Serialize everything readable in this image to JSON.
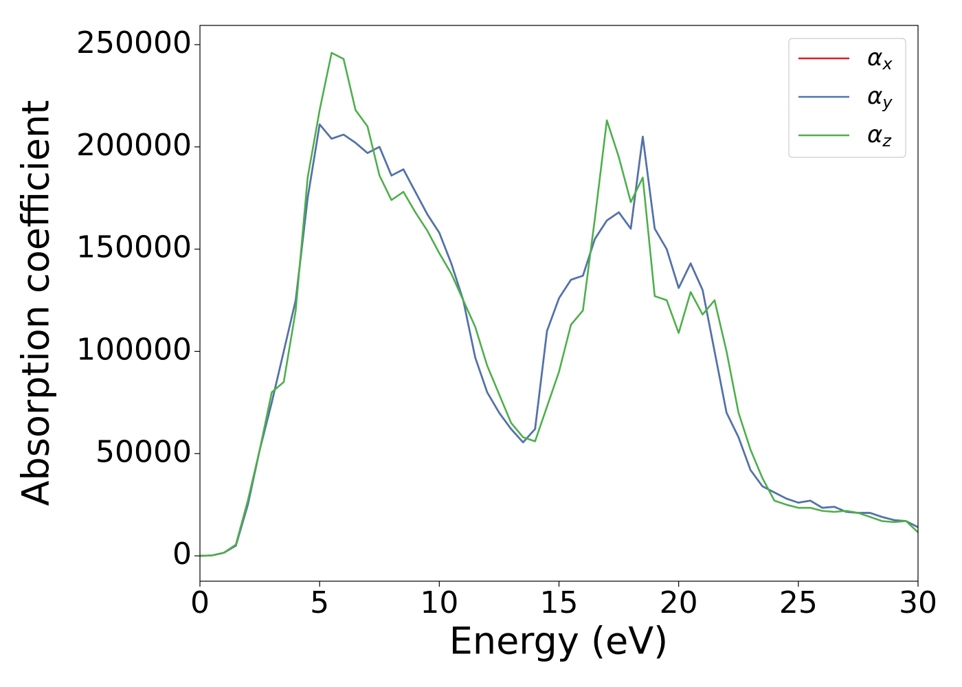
{
  "chart_data": {
    "type": "line",
    "xlabel": "Energy (eV)",
    "ylabel": "Absorption coefficient",
    "x": [
      0,
      0.5,
      1,
      1.5,
      2,
      2.5,
      3,
      3.5,
      4,
      4.5,
      5,
      5.5,
      6,
      6.5,
      7,
      7.5,
      8,
      8.5,
      9,
      9.5,
      10,
      10.5,
      11,
      11.5,
      12,
      12.5,
      13,
      13.5,
      14,
      14.5,
      15,
      15.5,
      16,
      16.5,
      17,
      17.5,
      18,
      18.5,
      19,
      19.5,
      20,
      20.5,
      21,
      21.5,
      22,
      22.5,
      23,
      23.5,
      24,
      24.5,
      25,
      25.5,
      26,
      26.5,
      27,
      27.5,
      28,
      28.5,
      29,
      29.5,
      30
    ],
    "series": [
      {
        "name": "αx",
        "color": "#e41a1c",
        "values": [
          0,
          200,
          1500,
          5000,
          25000,
          52000,
          75000,
          100000,
          125000,
          175000,
          211000,
          204000,
          206000,
          202000,
          197000,
          200000,
          186000,
          189000,
          178000,
          167000,
          158000,
          143000,
          125000,
          97000,
          80000,
          70000,
          62000,
          55500,
          62000,
          110000,
          126000,
          135000,
          137000,
          155000,
          164000,
          168000,
          160000,
          205000,
          160000,
          150000,
          131000,
          143000,
          130000,
          100000,
          70000,
          58000,
          42000,
          34000,
          31000,
          28000,
          26000,
          27000,
          23500,
          24000,
          21500,
          21000,
          21000,
          19000,
          17500,
          17000,
          14000
        ]
      },
      {
        "name": "αy",
        "color": "#4a76b0",
        "values": [
          0,
          200,
          1500,
          5000,
          25000,
          52000,
          75000,
          100000,
          125000,
          175000,
          211000,
          204000,
          206000,
          202000,
          197000,
          200000,
          186000,
          189000,
          178000,
          167000,
          158000,
          143000,
          125000,
          97000,
          80000,
          70000,
          62000,
          55500,
          62000,
          110000,
          126000,
          135000,
          137000,
          155000,
          164000,
          168000,
          160000,
          205000,
          160000,
          150000,
          131000,
          143000,
          130000,
          100000,
          70000,
          58000,
          42000,
          34000,
          31000,
          28000,
          26000,
          27000,
          23500,
          24000,
          21500,
          21000,
          21000,
          19000,
          17500,
          17000,
          14000
        ]
      },
      {
        "name": "αz",
        "color": "#4daf4a",
        "values": [
          0,
          200,
          1500,
          5500,
          27000,
          52000,
          80000,
          85000,
          120000,
          185000,
          218000,
          246000,
          243000,
          218000,
          210000,
          186000,
          174000,
          178000,
          168000,
          159000,
          148000,
          138000,
          125000,
          112000,
          93000,
          79000,
          65000,
          58000,
          56000,
          73000,
          90000,
          113000,
          120000,
          165000,
          213000,
          195000,
          173000,
          185000,
          127000,
          125000,
          109000,
          129000,
          118000,
          125000,
          100000,
          70000,
          52000,
          38000,
          27000,
          25000,
          23500,
          23500,
          22000,
          21500,
          22000,
          21000,
          19000,
          17000,
          16500,
          17000,
          11500
        ]
      }
    ],
    "xlim": [
      0,
      30
    ],
    "xticks": [
      0,
      5,
      10,
      15,
      20,
      25,
      30
    ],
    "ylim": [
      -12400,
      259400
    ],
    "yticks": [
      0,
      50000,
      100000,
      150000,
      200000,
      250000
    ],
    "legend": "upper right"
  }
}
